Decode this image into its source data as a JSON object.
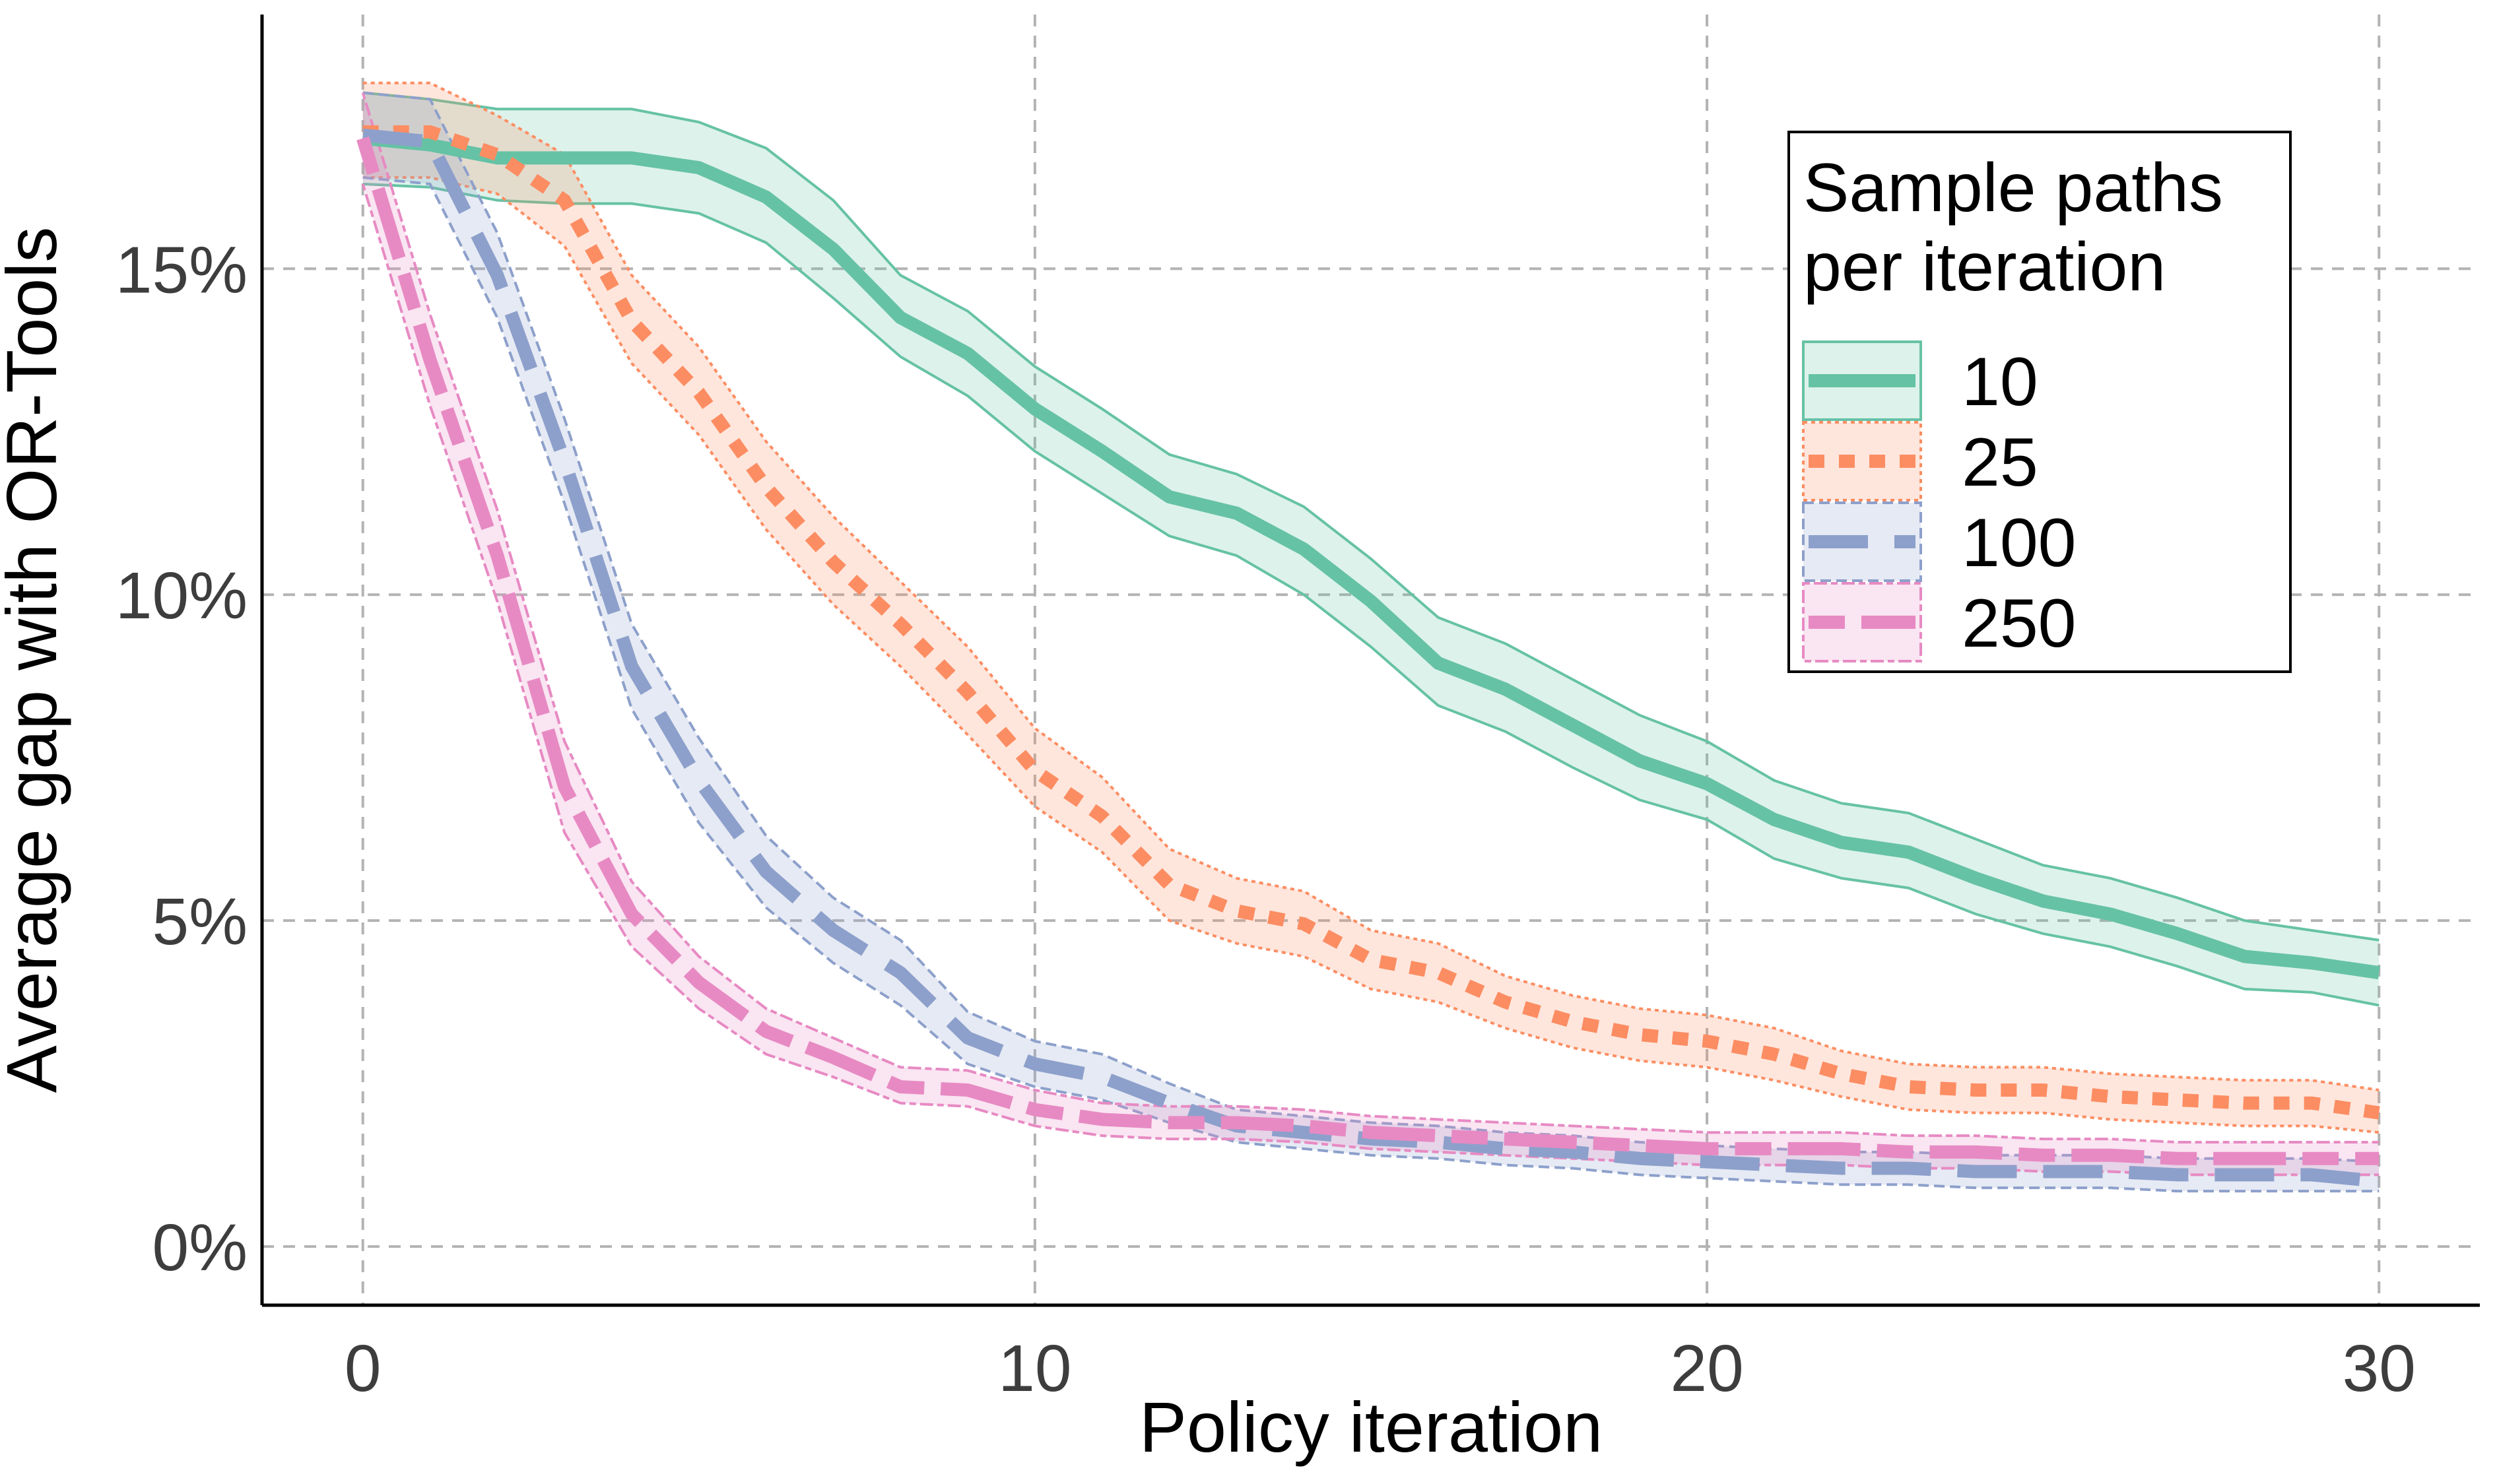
{
  "chart_data": {
    "type": "line",
    "title": "",
    "xlabel": "Policy iteration",
    "ylabel": "Average gap with OR-Tools",
    "xlim": [
      -1.5,
      31.5
    ],
    "ylim": [
      -0.9,
      18.9
    ],
    "x_ticks": [
      0,
      10,
      20,
      30
    ],
    "x_tick_labels": [
      "0",
      "10",
      "20",
      "30"
    ],
    "y_ticks": [
      0,
      5,
      10,
      15
    ],
    "y_tick_labels": [
      "0%",
      "5%",
      "10%",
      "15%"
    ],
    "grid": true,
    "legend_position": "top-right",
    "legend_title": "Sample paths per iteration",
    "legend_title_lines": [
      "Sample paths",
      "per iteration"
    ],
    "x": [
      0,
      1,
      2,
      3,
      4,
      5,
      6,
      7,
      8,
      9,
      10,
      11,
      12,
      13,
      14,
      15,
      16,
      17,
      18,
      19,
      20,
      21,
      22,
      23,
      24,
      25,
      26,
      27,
      28,
      29,
      30
    ],
    "series": [
      {
        "name": "10",
        "color": "#66c2a5",
        "dash": "solid",
        "values": [
          17.0,
          16.9,
          16.7,
          16.7,
          16.7,
          16.55,
          16.1,
          15.3,
          14.25,
          13.7,
          12.85,
          12.2,
          11.5,
          11.25,
          10.7,
          9.9,
          8.95,
          8.55,
          8.0,
          7.45,
          7.1,
          6.55,
          6.2,
          6.05,
          5.65,
          5.3,
          5.1,
          4.8,
          4.45,
          4.35,
          4.2
        ],
        "lower": [
          16.3,
          16.25,
          16.05,
          16.0,
          16.0,
          15.85,
          15.4,
          14.55,
          13.65,
          13.05,
          12.2,
          11.55,
          10.9,
          10.6,
          10.0,
          9.2,
          8.3,
          7.9,
          7.35,
          6.85,
          6.55,
          5.95,
          5.65,
          5.5,
          5.1,
          4.8,
          4.6,
          4.3,
          3.95,
          3.9,
          3.7
        ],
        "upper": [
          17.7,
          17.6,
          17.45,
          17.45,
          17.45,
          17.25,
          16.85,
          16.05,
          14.9,
          14.35,
          13.5,
          12.85,
          12.15,
          11.85,
          11.35,
          10.55,
          9.65,
          9.25,
          8.7,
          8.15,
          7.75,
          7.15,
          6.8,
          6.65,
          6.25,
          5.85,
          5.65,
          5.35,
          5.0,
          4.85,
          4.7
        ]
      },
      {
        "name": "25",
        "color": "#fc8d62",
        "dash": "dotted",
        "values": [
          17.1,
          17.1,
          16.75,
          16.05,
          14.2,
          13.1,
          11.65,
          10.5,
          9.55,
          8.5,
          7.3,
          6.6,
          5.55,
          5.15,
          4.95,
          4.4,
          4.2,
          3.75,
          3.45,
          3.25,
          3.15,
          2.95,
          2.65,
          2.45,
          2.4,
          2.4,
          2.3,
          2.25,
          2.2,
          2.2,
          2.05
        ],
        "lower": [
          16.4,
          16.4,
          16.15,
          15.35,
          13.55,
          12.45,
          11.0,
          9.85,
          8.9,
          7.85,
          6.75,
          6.05,
          5.0,
          4.65,
          4.45,
          3.95,
          3.75,
          3.35,
          3.05,
          2.85,
          2.75,
          2.55,
          2.3,
          2.1,
          2.05,
          2.05,
          1.95,
          1.9,
          1.85,
          1.85,
          1.75
        ],
        "upper": [
          17.85,
          17.85,
          17.35,
          16.75,
          14.9,
          13.8,
          12.35,
          11.2,
          10.2,
          9.2,
          7.95,
          7.2,
          6.1,
          5.65,
          5.45,
          4.85,
          4.65,
          4.15,
          3.85,
          3.65,
          3.55,
          3.35,
          3.0,
          2.8,
          2.75,
          2.75,
          2.65,
          2.6,
          2.55,
          2.55,
          2.4
        ]
      },
      {
        "name": "100",
        "color": "#8da0cb",
        "dash": "longdash",
        "values": [
          17.05,
          16.95,
          14.9,
          12.05,
          8.9,
          7.15,
          5.75,
          4.85,
          4.2,
          3.2,
          2.8,
          2.6,
          2.2,
          1.85,
          1.75,
          1.65,
          1.6,
          1.5,
          1.45,
          1.35,
          1.3,
          1.25,
          1.2,
          1.2,
          1.15,
          1.15,
          1.15,
          1.1,
          1.1,
          1.1,
          1.0
        ],
        "lower": [
          16.4,
          16.3,
          14.25,
          11.4,
          8.25,
          6.5,
          5.2,
          4.35,
          3.7,
          2.8,
          2.45,
          2.25,
          1.9,
          1.6,
          1.5,
          1.4,
          1.35,
          1.25,
          1.2,
          1.1,
          1.05,
          1.0,
          0.95,
          0.95,
          0.9,
          0.9,
          0.9,
          0.85,
          0.85,
          0.85,
          0.85
        ],
        "upper": [
          17.7,
          17.6,
          15.55,
          12.7,
          9.55,
          7.8,
          6.3,
          5.35,
          4.7,
          3.6,
          3.15,
          2.95,
          2.5,
          2.1,
          2.0,
          1.9,
          1.85,
          1.75,
          1.7,
          1.6,
          1.55,
          1.5,
          1.45,
          1.45,
          1.4,
          1.4,
          1.4,
          1.35,
          1.35,
          1.35,
          1.3
        ]
      },
      {
        "name": "250",
        "color": "#e78ac3",
        "dash": "twodash",
        "values": [
          17.0,
          13.6,
          10.6,
          7.05,
          5.1,
          4.05,
          3.3,
          2.9,
          2.45,
          2.4,
          2.1,
          1.95,
          1.9,
          1.9,
          1.85,
          1.75,
          1.7,
          1.65,
          1.6,
          1.55,
          1.5,
          1.5,
          1.5,
          1.45,
          1.45,
          1.4,
          1.4,
          1.35,
          1.35,
          1.35,
          1.35
        ],
        "lower": [
          16.3,
          12.9,
          9.9,
          6.35,
          4.6,
          3.65,
          2.95,
          2.6,
          2.2,
          2.15,
          1.85,
          1.7,
          1.65,
          1.65,
          1.6,
          1.5,
          1.45,
          1.4,
          1.35,
          1.3,
          1.25,
          1.25,
          1.25,
          1.2,
          1.2,
          1.15,
          1.15,
          1.1,
          1.1,
          1.1,
          1.1
        ],
        "upper": [
          17.7,
          14.3,
          11.3,
          7.75,
          5.6,
          4.45,
          3.65,
          3.2,
          2.75,
          2.7,
          2.4,
          2.2,
          2.15,
          2.15,
          2.1,
          2.0,
          1.95,
          1.9,
          1.85,
          1.8,
          1.75,
          1.75,
          1.75,
          1.7,
          1.7,
          1.65,
          1.65,
          1.6,
          1.6,
          1.6,
          1.6
        ]
      }
    ]
  }
}
